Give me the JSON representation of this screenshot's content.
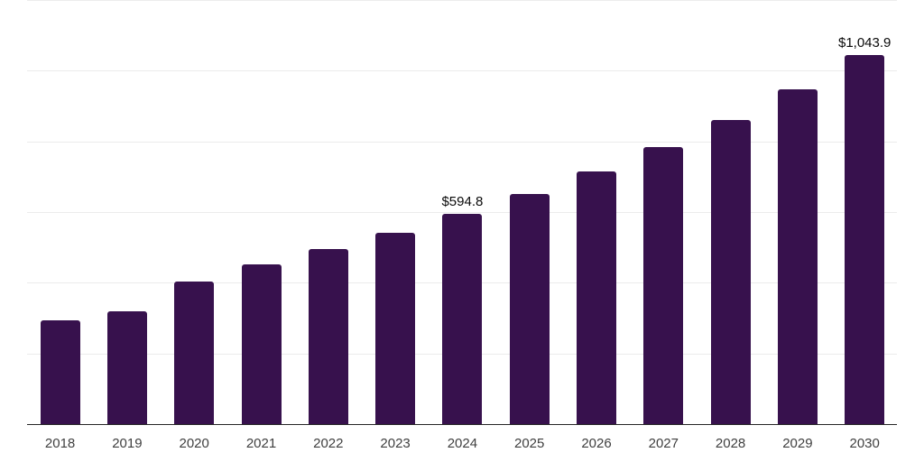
{
  "chart_data": {
    "type": "bar",
    "title": "",
    "xlabel": "",
    "ylabel": "",
    "categories": [
      "2018",
      "2019",
      "2020",
      "2021",
      "2022",
      "2023",
      "2024",
      "2025",
      "2026",
      "2027",
      "2028",
      "2029",
      "2030"
    ],
    "values": [
      294.0,
      319.5,
      403.0,
      451.5,
      496.5,
      542.5,
      594.8,
      651.5,
      715.0,
      785.0,
      861.5,
      948.5,
      1043.9
    ],
    "data_labels": {
      "2024": "$594.8",
      "2030": "$1,043.9"
    },
    "ylim": [
      0,
      1200
    ],
    "gridline_interval": 200,
    "grid": true,
    "legend": false,
    "y_axis_labels_visible": false
  },
  "style": {
    "bar_color": "#37114d",
    "background_color": "#ffffff",
    "gridline_color": "#ececec",
    "axis_line_color": "#262626",
    "tick_label_color": "#3f3f3f",
    "value_label_color": "#0a0a0a"
  }
}
